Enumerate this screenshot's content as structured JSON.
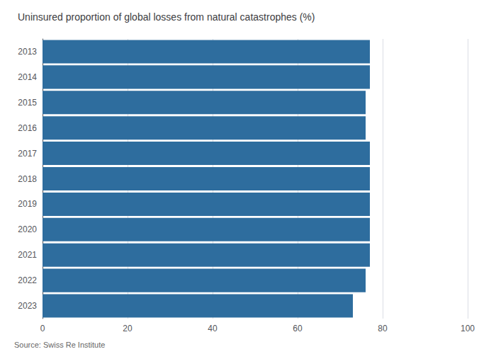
{
  "chart_data": {
    "type": "bar",
    "orientation": "horizontal",
    "title": "Uninsured proportion of global losses from natural catastrophes (%)",
    "categories": [
      "2013",
      "2014",
      "2015",
      "2016",
      "2017",
      "2018",
      "2019",
      "2020",
      "2021",
      "2022",
      "2023"
    ],
    "values": [
      77,
      77,
      76,
      76,
      77,
      77,
      77,
      77,
      77,
      76,
      73
    ],
    "color": "#2e6d9e",
    "xlim": [
      0,
      100
    ],
    "xticks": [
      0,
      20,
      40,
      60,
      80,
      100
    ],
    "grid": true,
    "annotations": [
      "Source: Swiss Re Institute"
    ]
  }
}
